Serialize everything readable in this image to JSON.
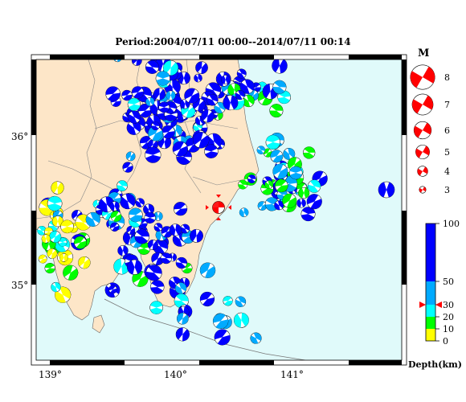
{
  "title": "Period:2004/07/11 00:00--2014/07/11 00:14",
  "map": {
    "lat_labels": [
      "36°",
      "35°"
    ],
    "lon_labels": [
      "139°",
      "140°",
      "141°"
    ],
    "colors": {
      "sea": "#e0fafa",
      "land": "#fde6c8",
      "boundary": "#888888"
    }
  },
  "magnitude_legend": {
    "title": "M",
    "items": [
      {
        "label": "8",
        "value": 8
      },
      {
        "label": "7",
        "value": 7
      },
      {
        "label": "6",
        "value": 6
      },
      {
        "label": "5",
        "value": 5
      },
      {
        "label": "4",
        "value": 4
      },
      {
        "label": "3",
        "value": 3
      }
    ],
    "color": "#ff0000"
  },
  "depth_scale": {
    "title": "Depth(km)",
    "ticks": [
      "100",
      "50",
      "30",
      "20",
      "10",
      "0"
    ],
    "marker_value": 30,
    "bands": [
      {
        "from": 0,
        "to": 10,
        "color": "#ffff00"
      },
      {
        "from": 10,
        "to": 20,
        "color": "#00ff00"
      },
      {
        "from": 20,
        "to": 30,
        "color": "#00ffff"
      },
      {
        "from": 30,
        "to": 50,
        "color": "#00aaff"
      },
      {
        "from": 50,
        "to": 100,
        "color": "#0000ff"
      }
    ]
  },
  "highlight_event": {
    "color": "#ff0000"
  }
}
